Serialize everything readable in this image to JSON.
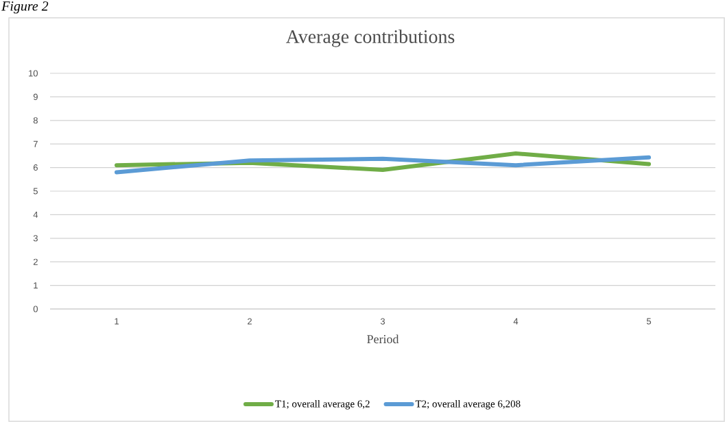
{
  "chart_data": {
    "type": "line",
    "title": "Average contributions",
    "xlabel": "Period",
    "annotations": [
      "Figure 2"
    ],
    "categories": [
      "1",
      "2",
      "3",
      "4",
      "5"
    ],
    "series": [
      {
        "name": "T1; overall average 6,2",
        "color": "#70ad47",
        "values": [
          6.1,
          6.2,
          5.9,
          6.6,
          6.15
        ]
      },
      {
        "name": "T2; overall average 6,208",
        "color": "#5b9bd5",
        "values": [
          5.8,
          6.3,
          6.37,
          6.1,
          6.43
        ]
      }
    ],
    "ylim": [
      0,
      10
    ],
    "yticks": [
      0,
      1,
      2,
      3,
      4,
      5,
      6,
      7,
      8,
      9,
      10
    ],
    "grid": "y",
    "legend": "bottom",
    "line_style": "solid"
  }
}
